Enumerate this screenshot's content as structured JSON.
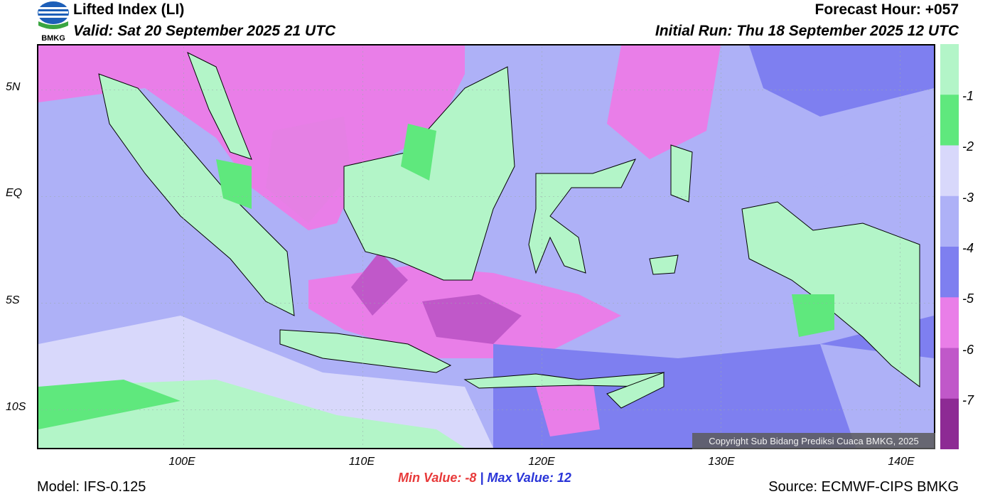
{
  "header": {
    "title": "Lifted Index (LI)",
    "valid": "Valid: Sat 20 September 2025 21 UTC",
    "forecast_hour": "Forecast Hour: +057",
    "initial_run": "Initial Run: Thu 18 September 2025 12 UTC",
    "logo_text": "BMKG"
  },
  "map": {
    "lat_labels": [
      "5N",
      "EQ",
      "5S",
      "10S"
    ],
    "lon_labels": [
      "100E",
      "110E",
      "120E",
      "130E",
      "140E"
    ],
    "copyright": "Copyright Sub Bidang Prediksi Cuaca BMKG, 2025"
  },
  "colorbar": {
    "labels": [
      "-1",
      "-2",
      "-3",
      "-4",
      "-5",
      "-6",
      "-7"
    ],
    "colors": [
      "#b3f5c8",
      "#5fe87d",
      "#d8d8fb",
      "#aeb1f7",
      "#7e7ff0",
      "#e97ee8",
      "#c058c9",
      "#8d2a94"
    ]
  },
  "footer": {
    "min_label": "Min Value:",
    "min_value": "-8",
    "separator": "|",
    "max_label": "Max Value:",
    "max_value": "12",
    "model": "Model: IFS-0.125",
    "source": "Source: ECMWF-CIPS BMKG"
  }
}
